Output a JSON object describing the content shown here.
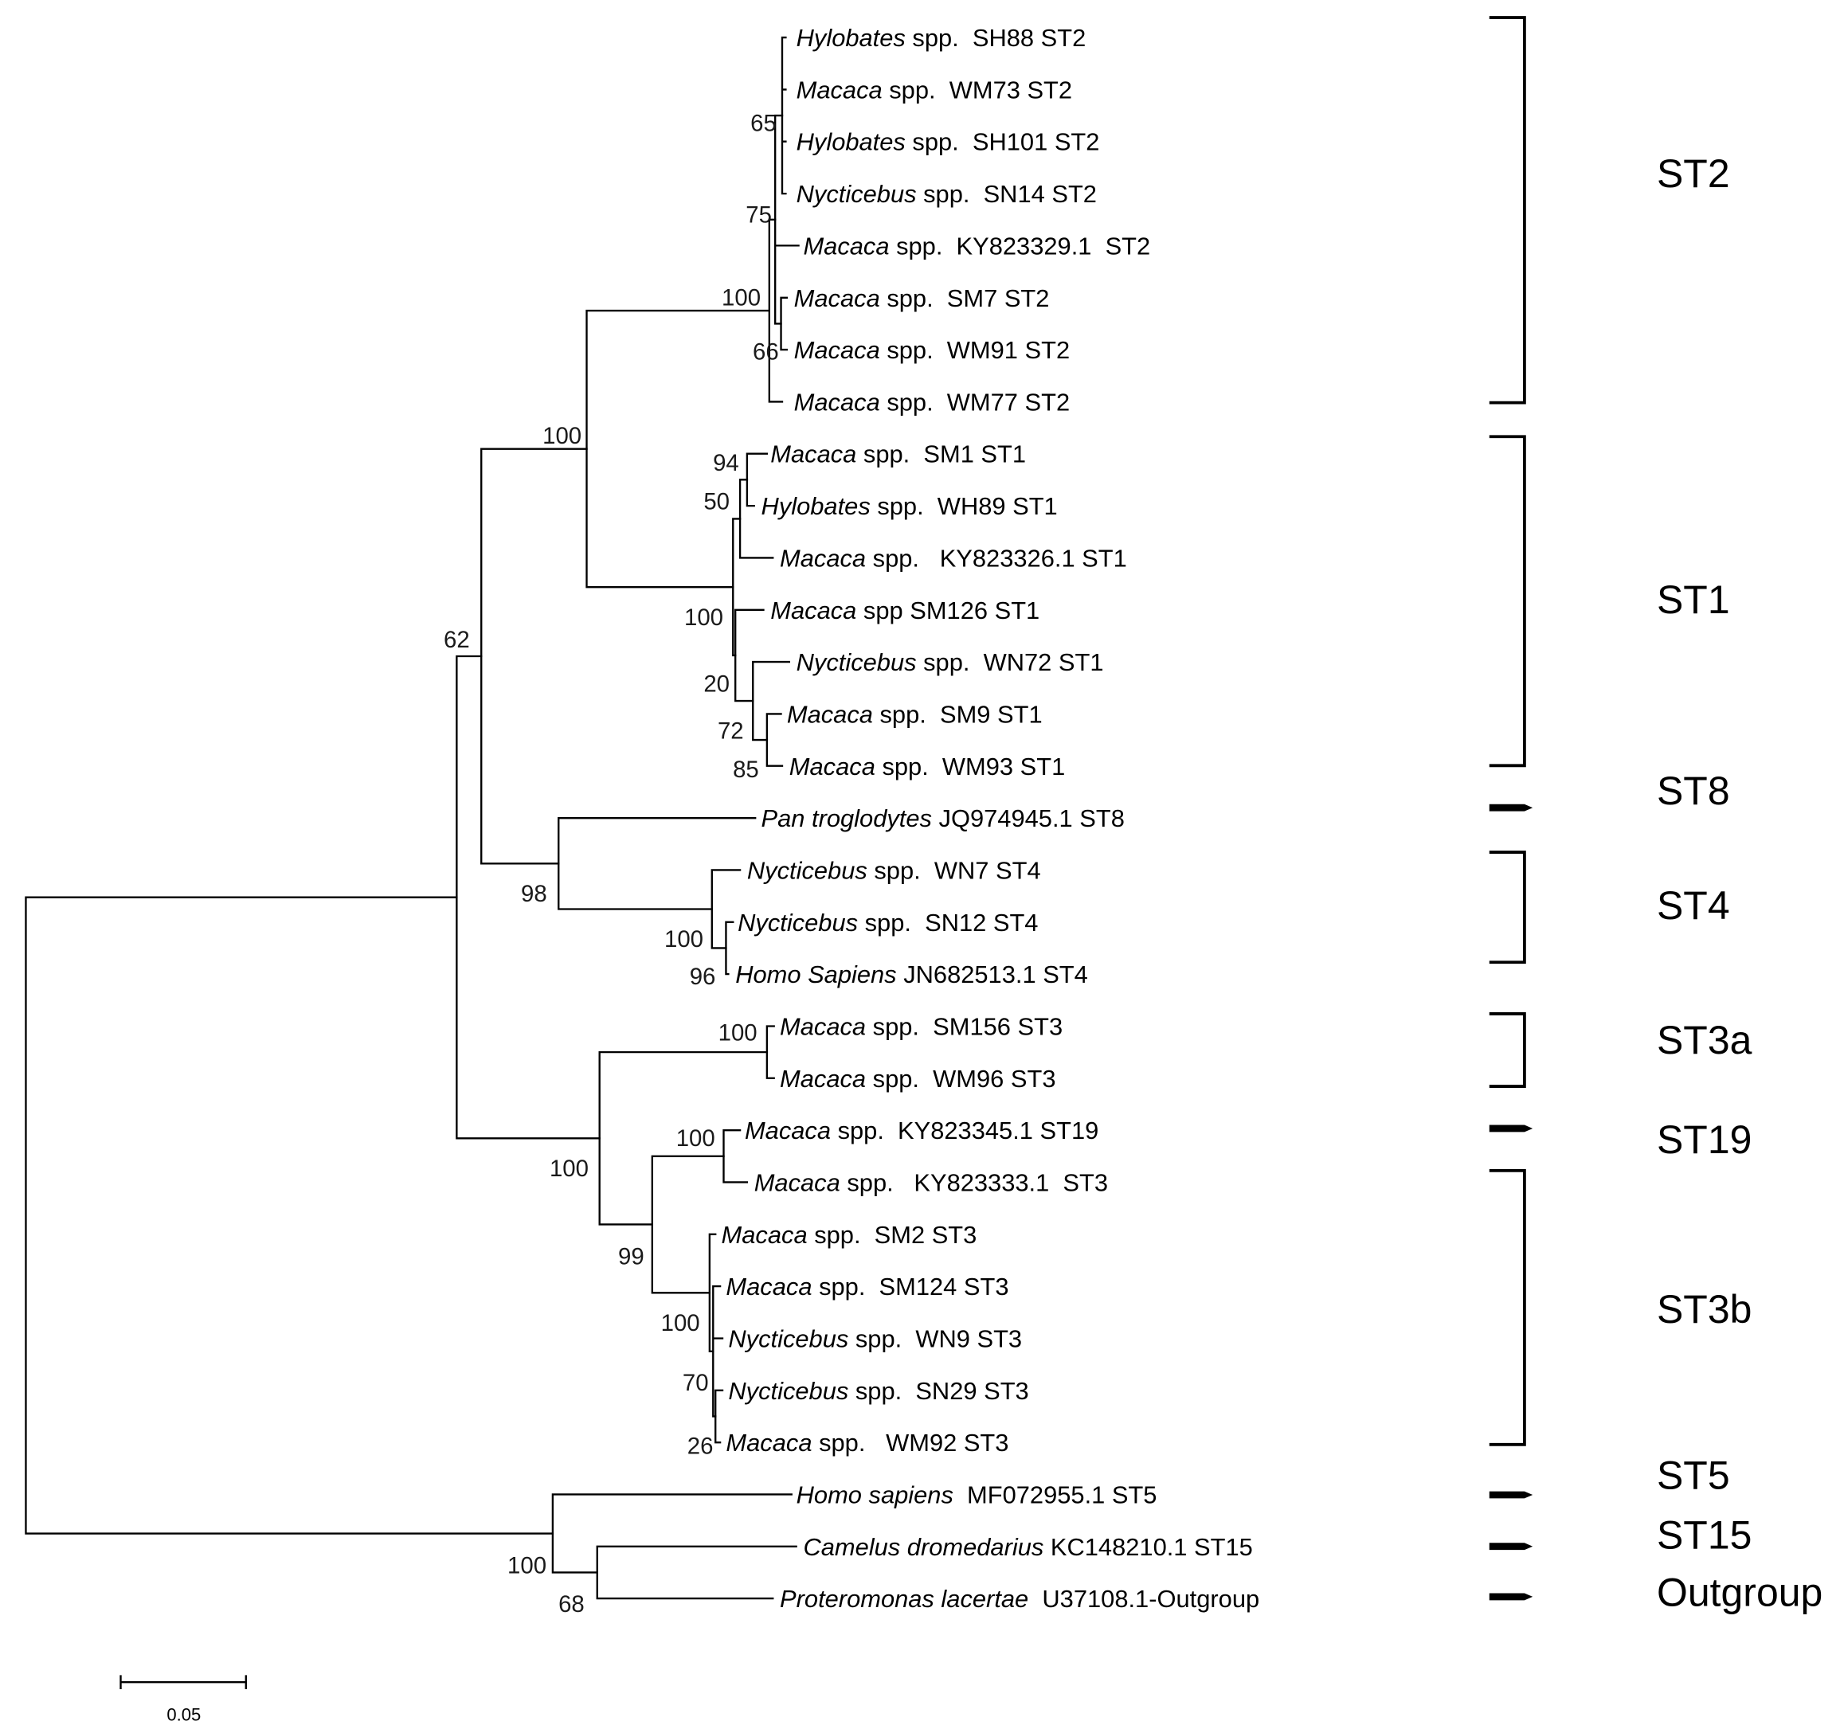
{
  "leaves": [
    {
      "genus": "Hylobates",
      "rest": " spp.  SH88 ST2"
    },
    {
      "genus": "Macaca",
      "rest": " spp.  WM73 ST2"
    },
    {
      "genus": "Hylobates",
      "rest": " spp.  SH101 ST2"
    },
    {
      "genus": "Nycticebus",
      "rest": " spp.  SN14 ST2"
    },
    {
      "genus": "Macaca",
      "rest": " spp.  KY823329.1  ST2"
    },
    {
      "genus": "Macaca",
      "rest": " spp.  SM7 ST2"
    },
    {
      "genus": "Macaca",
      "rest": " spp.  WM91 ST2"
    },
    {
      "genus": "Macaca",
      "rest": " spp.  WM77 ST2"
    },
    {
      "genus": "Macaca",
      "rest": " spp.  SM1 ST1"
    },
    {
      "genus": "Hylobates",
      "rest": " spp.  WH89 ST1"
    },
    {
      "genus": "Macaca",
      "rest": " spp.   KY823326.1 ST1"
    },
    {
      "genus": "Macaca",
      "rest": " spp SM126 ST1"
    },
    {
      "genus": "Nycticebus",
      "rest": " spp.  WN72 ST1"
    },
    {
      "genus": "Macaca",
      "rest": " spp.  SM9 ST1"
    },
    {
      "genus": "Macaca",
      "rest": " spp.  WM93 ST1"
    },
    {
      "genus": "Pan troglodytes",
      "rest": " JQ974945.1 ST8"
    },
    {
      "genus": "Nycticebus",
      "rest": " spp.  WN7 ST4"
    },
    {
      "genus": "Nycticebus",
      "rest": " spp.  SN12 ST4"
    },
    {
      "genus": "Homo Sapiens",
      "rest": " JN682513.1 ST4"
    },
    {
      "genus": "Macaca",
      "rest": " spp.  SM156 ST3"
    },
    {
      "genus": "Macaca",
      "rest": " spp.  WM96 ST3"
    },
    {
      "genus": "Macaca",
      "rest": " spp.  KY823345.1 ST19"
    },
    {
      "genus": "Macaca",
      "rest": " spp.   KY823333.1  ST3"
    },
    {
      "genus": "Macaca",
      "rest": " spp.  SM2 ST3"
    },
    {
      "genus": "Macaca",
      "rest": " spp.  SM124 ST3"
    },
    {
      "genus": "Nycticebus",
      "rest": " spp.  WN9 ST3"
    },
    {
      "genus": "Nycticebus",
      "rest": " spp.  SN29 ST3"
    },
    {
      "genus": "Macaca",
      "rest": " spp.   WM92 ST3"
    },
    {
      "genus": "Homo sapiens",
      "rest": "  MF072955.1 ST5"
    },
    {
      "genus": "Camelus dromedarius",
      "rest": " KC148210.1 ST15"
    },
    {
      "genus": "Proteromonas lacertae",
      "rest": "  U37108.1-Outgroup"
    }
  ],
  "bootstrap": {
    "st2_top_group": "65",
    "st2_inner": "75",
    "st2_clade": "100",
    "st2_pair": "66",
    "st1_st2": "100",
    "st1_pair": "94",
    "st1_inner": "50",
    "st1_clade": "100",
    "st1_lower": "20",
    "st1_sub": "72",
    "st1_pair_low": "85",
    "primate_group": "62",
    "st8_st4": "98",
    "st4_clade": "100",
    "st4_pair": "96",
    "st3a_clade": "100",
    "st19_pair": "100",
    "st3_all": "100",
    "st3b_st19": "99",
    "st3b_clade": "100",
    "st3b_inner": "70",
    "st3b_pair": "26",
    "outgroup_clade": "100",
    "st15_outgroup": "68"
  },
  "clades": {
    "st2": "ST2",
    "st1": "ST1",
    "st8": "ST8",
    "st4": "ST4",
    "st3a": "ST3a",
    "st19": "ST19",
    "st3b": "ST3b",
    "st5": "ST5",
    "st15": "ST15",
    "outgroup": "Outgroup"
  },
  "scale_bar": {
    "label": "0.05",
    "value": 0.05
  }
}
